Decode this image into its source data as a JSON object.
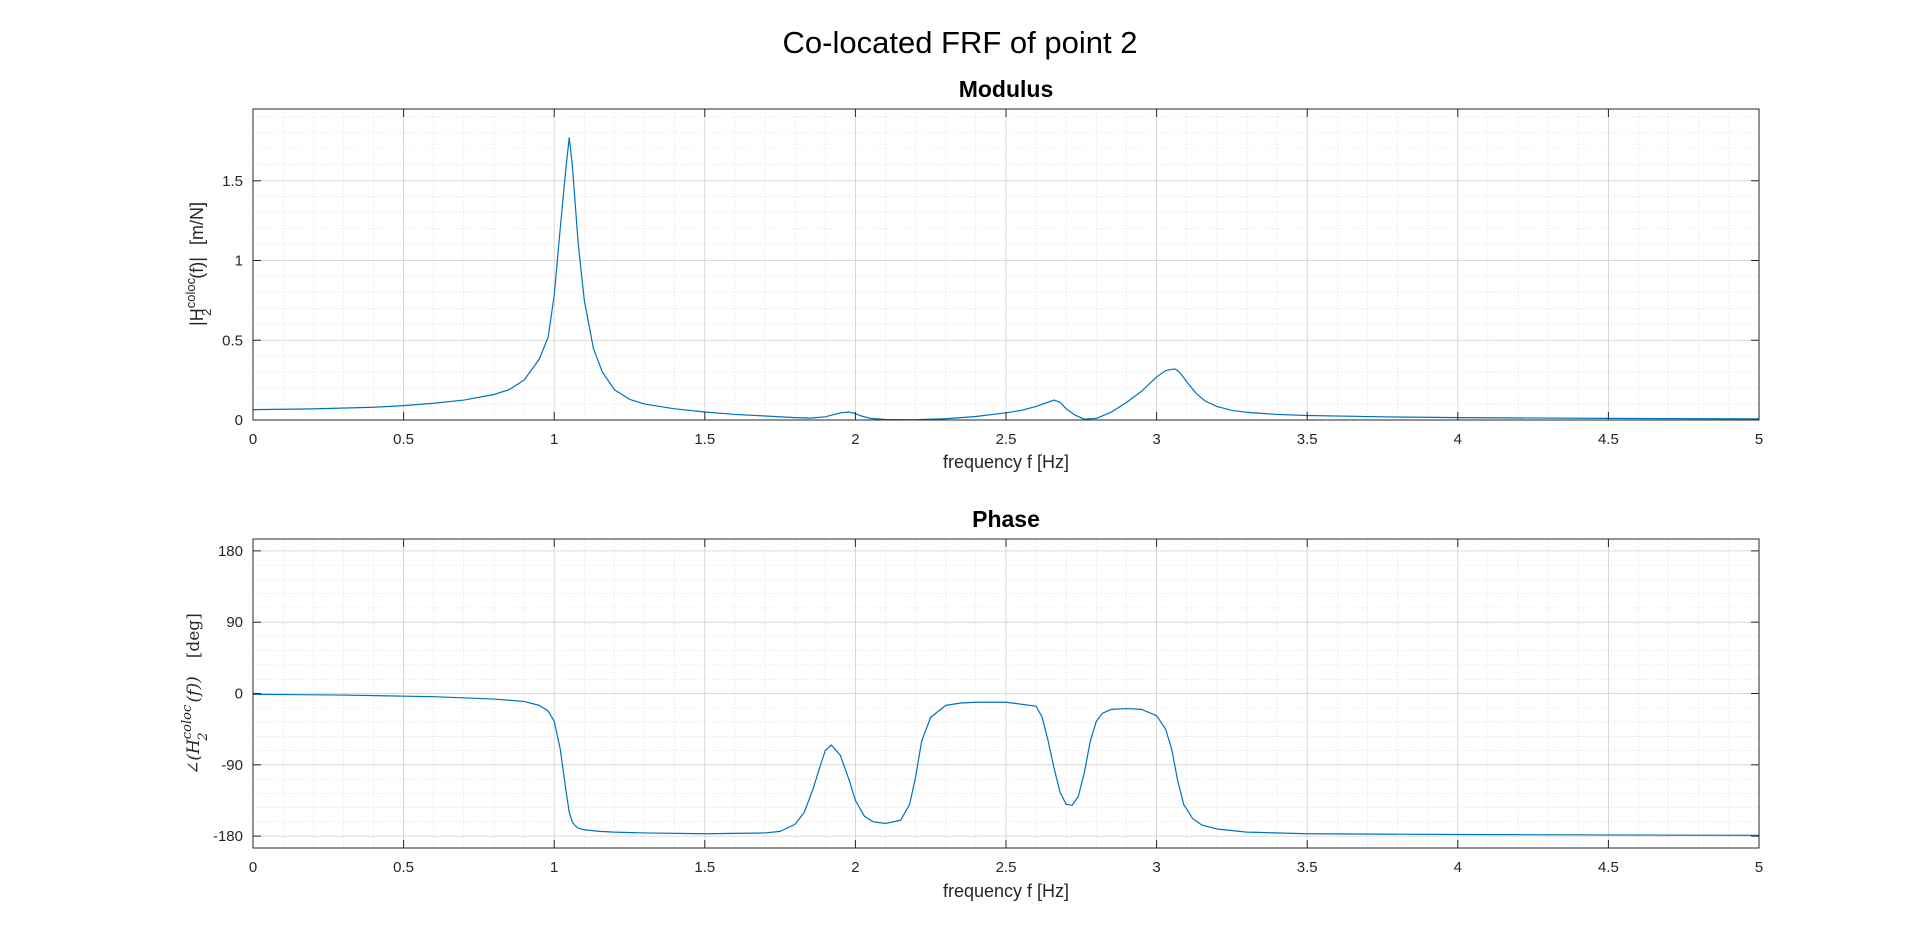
{
  "figure": {
    "suptitle": "Co-located FRF of point 2",
    "line_color": "#0072BD"
  },
  "chart_data": [
    {
      "type": "line",
      "title": "Modulus",
      "xlabel": "frequency f [Hz]",
      "ylabel": {
        "pre": "|H",
        "sub": "2",
        "sup": "coloc",
        "post": "(f)|",
        "unit": "[m/N]"
      },
      "xlim": [
        0,
        5
      ],
      "ylim": [
        0,
        1.95
      ],
      "xticks": [
        0,
        0.5,
        1,
        1.5,
        2,
        2.5,
        3,
        3.5,
        4,
        4.5,
        5
      ],
      "xticklabels": [
        "0",
        "0.5",
        "1",
        "1.5",
        "2",
        "2.5",
        "3",
        "3.5",
        "4",
        "4.5",
        "5"
      ],
      "yticks": [
        0,
        0.5,
        1,
        1.5
      ],
      "yticklabels": [
        "0",
        "0.5",
        "1",
        "1.5"
      ],
      "grid": true,
      "minor_grid": true,
      "series": [
        {
          "x": [
            0,
            0.2,
            0.4,
            0.5,
            0.6,
            0.7,
            0.8,
            0.85,
            0.9,
            0.95,
            0.98,
            1.0,
            1.02,
            1.04,
            1.05,
            1.06,
            1.08,
            1.1,
            1.13,
            1.16,
            1.2,
            1.25,
            1.3,
            1.4,
            1.5,
            1.6,
            1.7,
            1.8,
            1.85,
            1.9,
            1.95,
            1.98,
            2.0,
            2.02,
            2.05,
            2.1,
            2.2,
            2.3,
            2.4,
            2.5,
            2.55,
            2.6,
            2.63,
            2.66,
            2.68,
            2.7,
            2.73,
            2.76,
            2.8,
            2.85,
            2.9,
            2.95,
            3.0,
            3.03,
            3.06,
            3.07,
            3.08,
            3.1,
            3.13,
            3.16,
            3.2,
            3.25,
            3.3,
            3.4,
            3.5,
            3.75,
            4.0,
            4.5,
            5.0
          ],
          "y": [
            0.065,
            0.07,
            0.08,
            0.09,
            0.105,
            0.125,
            0.16,
            0.19,
            0.25,
            0.38,
            0.52,
            0.78,
            1.2,
            1.6,
            1.77,
            1.6,
            1.1,
            0.75,
            0.45,
            0.3,
            0.19,
            0.13,
            0.1,
            0.07,
            0.05,
            0.035,
            0.025,
            0.015,
            0.012,
            0.02,
            0.045,
            0.05,
            0.04,
            0.025,
            0.01,
            0.003,
            0.002,
            0.008,
            0.022,
            0.045,
            0.06,
            0.085,
            0.105,
            0.125,
            0.11,
            0.07,
            0.03,
            0.005,
            0.01,
            0.05,
            0.11,
            0.18,
            0.27,
            0.31,
            0.32,
            0.31,
            0.29,
            0.24,
            0.17,
            0.12,
            0.085,
            0.06,
            0.048,
            0.035,
            0.028,
            0.02,
            0.015,
            0.01,
            0.007
          ]
        }
      ]
    },
    {
      "type": "line",
      "title": "Phase",
      "xlabel": "frequency f [Hz]",
      "ylabel": {
        "pre": "∠(H",
        "sub": "2",
        "sup": "coloc",
        "post": "(f))",
        "unit": "[deg]"
      },
      "xlim": [
        0,
        5
      ],
      "ylim": [
        -195,
        195
      ],
      "xticks": [
        0,
        0.5,
        1,
        1.5,
        2,
        2.5,
        3,
        3.5,
        4,
        4.5,
        5
      ],
      "xticklabels": [
        "0",
        "0.5",
        "1",
        "1.5",
        "2",
        "2.5",
        "3",
        "3.5",
        "4",
        "4.5",
        "5"
      ],
      "yticks": [
        -180,
        -90,
        0,
        90,
        180
      ],
      "yticklabels": [
        "-180",
        "-90",
        "0",
        "90",
        "180"
      ],
      "grid": true,
      "minor_grid": true,
      "series": [
        {
          "x": [
            0,
            0.3,
            0.6,
            0.8,
            0.9,
            0.95,
            0.98,
            1.0,
            1.02,
            1.04,
            1.05,
            1.06,
            1.07,
            1.08,
            1.1,
            1.15,
            1.2,
            1.3,
            1.5,
            1.7,
            1.75,
            1.8,
            1.83,
            1.86,
            1.88,
            1.9,
            1.92,
            1.95,
            1.98,
            2.0,
            2.03,
            2.06,
            2.1,
            2.15,
            2.18,
            2.2,
            2.22,
            2.25,
            2.3,
            2.35,
            2.4,
            2.5,
            2.6,
            2.62,
            2.64,
            2.66,
            2.68,
            2.7,
            2.72,
            2.74,
            2.76,
            2.78,
            2.8,
            2.82,
            2.85,
            2.9,
            2.95,
            3.0,
            3.03,
            3.05,
            3.07,
            3.09,
            3.12,
            3.15,
            3.2,
            3.3,
            3.5,
            4.0,
            4.5,
            5.0
          ],
          "y": [
            -1,
            -2,
            -4,
            -7,
            -10,
            -15,
            -22,
            -35,
            -70,
            -125,
            -150,
            -162,
            -167,
            -170,
            -172,
            -174,
            -175,
            -176,
            -177,
            -176,
            -174,
            -165,
            -150,
            -120,
            -95,
            -72,
            -65,
            -78,
            -110,
            -135,
            -155,
            -162,
            -164,
            -160,
            -140,
            -105,
            -60,
            -30,
            -15,
            -12,
            -11,
            -11,
            -16,
            -30,
            -60,
            -95,
            -125,
            -140,
            -141,
            -130,
            -100,
            -60,
            -35,
            -25,
            -20,
            -19,
            -20,
            -28,
            -45,
            -70,
            -110,
            -140,
            -158,
            -166,
            -171,
            -175,
            -177,
            -178,
            -178.5,
            -179
          ]
        }
      ]
    }
  ]
}
